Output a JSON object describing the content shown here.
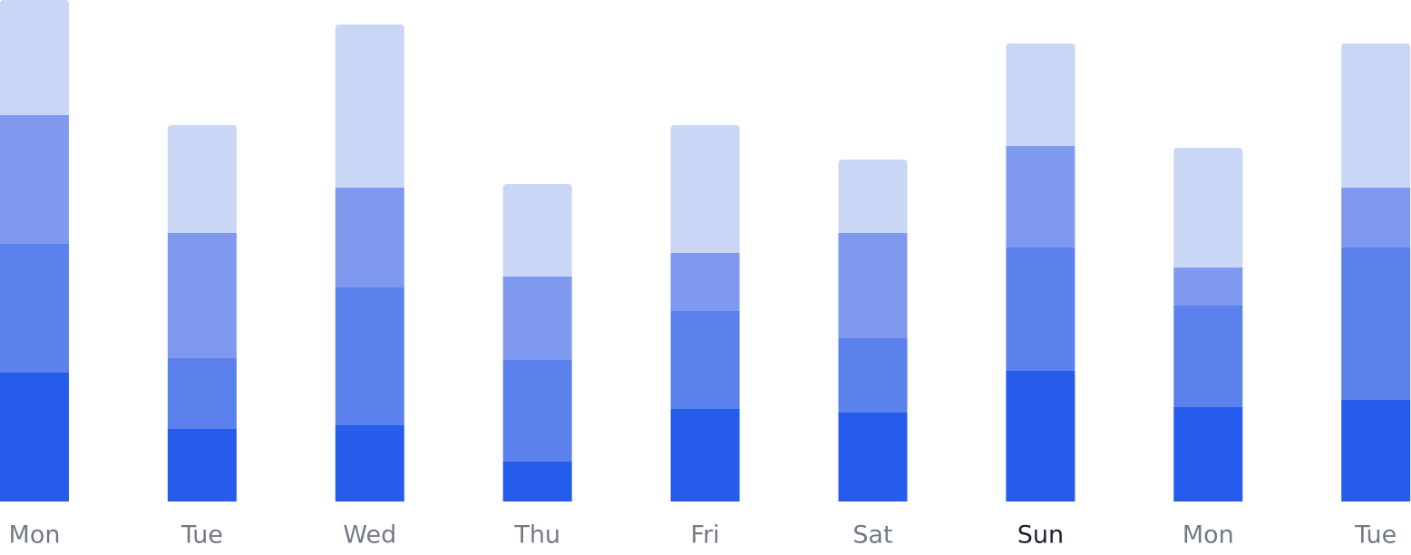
{
  "chart_data": {
    "type": "stacked_bar",
    "categories": [
      "Mon",
      "Tue",
      "Wed",
      "Thu",
      "Fri",
      "Sat",
      "Sun",
      "Mon",
      "Tue"
    ],
    "active_index": 6,
    "series": [
      {
        "color": "#255ceb",
        "values": [
          142,
          80,
          84,
          44,
          102,
          98,
          144,
          104,
          112
        ]
      },
      {
        "color": "#5b82ec",
        "values": [
          142,
          78,
          152,
          112,
          108,
          82,
          136,
          112,
          168
        ]
      },
      {
        "color": "#7f99ef",
        "values": [
          142,
          138,
          110,
          92,
          64,
          116,
          112,
          42,
          66
        ]
      },
      {
        "color": "#cad6f6",
        "values": [
          127,
          119,
          180,
          102,
          141,
          81,
          113,
          132,
          159
        ]
      }
    ],
    "ylim": [
      0,
      553
    ]
  }
}
